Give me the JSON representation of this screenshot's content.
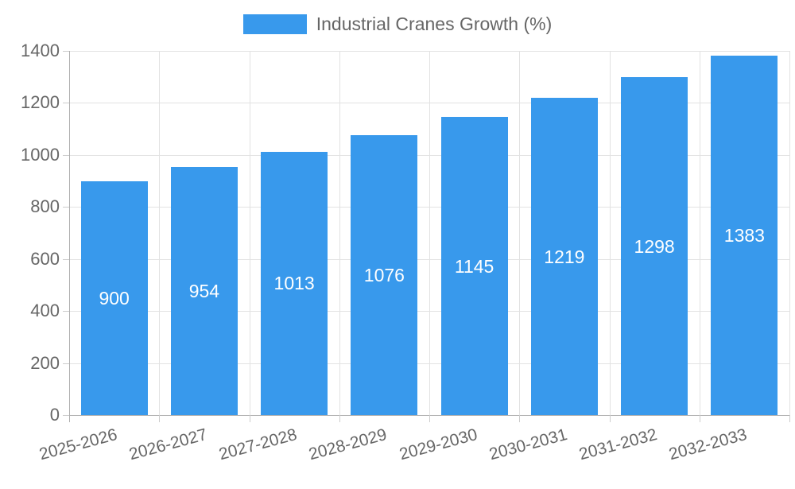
{
  "chart_data": {
    "type": "bar",
    "title": "Industrial Cranes Growth (%)",
    "categories": [
      "2025-2026",
      "2026-2027",
      "2027-2028",
      "2028-2029",
      "2029-2030",
      "2030-2031",
      "2031-2032",
      "2032-2033"
    ],
    "values": [
      900,
      954,
      1013,
      1076,
      1145,
      1219,
      1298,
      1383
    ],
    "value_labels": [
      "900",
      "954",
      "1013",
      "1076",
      "1145",
      "1219",
      "1298",
      "1383"
    ],
    "ytick_labels": [
      "0",
      "200",
      "400",
      "600",
      "800",
      "1000",
      "1200",
      "1400"
    ],
    "yticks": [
      0,
      200,
      400,
      600,
      800,
      1000,
      1200,
      1400
    ],
    "ylim": [
      0,
      1400
    ],
    "xlabel": "",
    "ylabel": "",
    "grid": true,
    "legend_position": "top",
    "x_label_rotation_deg": -15,
    "colors": {
      "bar": "#3899EC",
      "grid": "#E2E2E2",
      "axis": "#B0B0B0",
      "tick": "#CCCCCC",
      "text": "#666666",
      "value_label": "#FFFFFF",
      "background": "#FFFFFF"
    }
  }
}
